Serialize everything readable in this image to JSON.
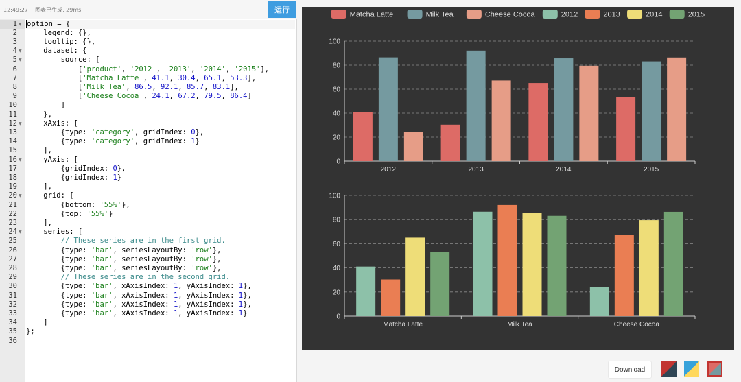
{
  "editor": {
    "status_text": "12:49:27    图表已生成, 29ms",
    "run_label": "运行",
    "active_line": 1,
    "lines": [
      {
        "n": "1",
        "fold": true,
        "tokens": [
          {
            "t": "option = {"
          }
        ]
      },
      {
        "n": "2",
        "fold": false,
        "tokens": [
          {
            "t": "    legend: {},"
          }
        ]
      },
      {
        "n": "3",
        "fold": false,
        "tokens": [
          {
            "t": "    tooltip: {},"
          }
        ]
      },
      {
        "n": "4",
        "fold": true,
        "tokens": [
          {
            "t": "    dataset: {"
          }
        ]
      },
      {
        "n": "5",
        "fold": true,
        "tokens": [
          {
            "t": "        source: ["
          }
        ]
      },
      {
        "n": "6",
        "fold": false,
        "tokens": [
          {
            "t": "            ["
          },
          {
            "t": "'product'",
            "c": "str"
          },
          {
            "t": ", "
          },
          {
            "t": "'2012'",
            "c": "str"
          },
          {
            "t": ", "
          },
          {
            "t": "'2013'",
            "c": "str"
          },
          {
            "t": ", "
          },
          {
            "t": "'2014'",
            "c": "str"
          },
          {
            "t": ", "
          },
          {
            "t": "'2015'",
            "c": "str"
          },
          {
            "t": "],"
          }
        ]
      },
      {
        "n": "7",
        "fold": false,
        "tokens": [
          {
            "t": "            ["
          },
          {
            "t": "'Matcha Latte'",
            "c": "str"
          },
          {
            "t": ", "
          },
          {
            "t": "41.1",
            "c": "num"
          },
          {
            "t": ", "
          },
          {
            "t": "30.4",
            "c": "num"
          },
          {
            "t": ", "
          },
          {
            "t": "65.1",
            "c": "num"
          },
          {
            "t": ", "
          },
          {
            "t": "53.3",
            "c": "num"
          },
          {
            "t": "],"
          }
        ]
      },
      {
        "n": "8",
        "fold": false,
        "tokens": [
          {
            "t": "            ["
          },
          {
            "t": "'Milk Tea'",
            "c": "str"
          },
          {
            "t": ", "
          },
          {
            "t": "86.5",
            "c": "num"
          },
          {
            "t": ", "
          },
          {
            "t": "92.1",
            "c": "num"
          },
          {
            "t": ", "
          },
          {
            "t": "85.7",
            "c": "num"
          },
          {
            "t": ", "
          },
          {
            "t": "83.1",
            "c": "num"
          },
          {
            "t": "],"
          }
        ]
      },
      {
        "n": "9",
        "fold": false,
        "tokens": [
          {
            "t": "            ["
          },
          {
            "t": "'Cheese Cocoa'",
            "c": "str"
          },
          {
            "t": ", "
          },
          {
            "t": "24.1",
            "c": "num"
          },
          {
            "t": ", "
          },
          {
            "t": "67.2",
            "c": "num"
          },
          {
            "t": ", "
          },
          {
            "t": "79.5",
            "c": "num"
          },
          {
            "t": ", "
          },
          {
            "t": "86.4",
            "c": "num"
          },
          {
            "t": "]"
          }
        ]
      },
      {
        "n": "10",
        "fold": false,
        "tokens": [
          {
            "t": "        ]"
          }
        ]
      },
      {
        "n": "11",
        "fold": false,
        "tokens": [
          {
            "t": "    },"
          }
        ]
      },
      {
        "n": "12",
        "fold": true,
        "tokens": [
          {
            "t": "    xAxis: ["
          }
        ]
      },
      {
        "n": "13",
        "fold": false,
        "tokens": [
          {
            "t": "        {type: "
          },
          {
            "t": "'category'",
            "c": "str"
          },
          {
            "t": ", gridIndex: "
          },
          {
            "t": "0",
            "c": "num"
          },
          {
            "t": "},"
          }
        ]
      },
      {
        "n": "14",
        "fold": false,
        "tokens": [
          {
            "t": "        {type: "
          },
          {
            "t": "'category'",
            "c": "str"
          },
          {
            "t": ", gridIndex: "
          },
          {
            "t": "1",
            "c": "num"
          },
          {
            "t": "}"
          }
        ]
      },
      {
        "n": "15",
        "fold": false,
        "tokens": [
          {
            "t": "    ],"
          }
        ]
      },
      {
        "n": "16",
        "fold": true,
        "tokens": [
          {
            "t": "    yAxis: ["
          }
        ]
      },
      {
        "n": "17",
        "fold": false,
        "tokens": [
          {
            "t": "        {gridIndex: "
          },
          {
            "t": "0",
            "c": "num"
          },
          {
            "t": "},"
          }
        ]
      },
      {
        "n": "18",
        "fold": false,
        "tokens": [
          {
            "t": "        {gridIndex: "
          },
          {
            "t": "1",
            "c": "num"
          },
          {
            "t": "}"
          }
        ]
      },
      {
        "n": "19",
        "fold": false,
        "tokens": [
          {
            "t": "    ],"
          }
        ]
      },
      {
        "n": "20",
        "fold": true,
        "tokens": [
          {
            "t": "    grid: ["
          }
        ]
      },
      {
        "n": "21",
        "fold": false,
        "tokens": [
          {
            "t": "        {bottom: "
          },
          {
            "t": "'55%'",
            "c": "str"
          },
          {
            "t": "},"
          }
        ]
      },
      {
        "n": "22",
        "fold": false,
        "tokens": [
          {
            "t": "        {top: "
          },
          {
            "t": "'55%'",
            "c": "str"
          },
          {
            "t": "}"
          }
        ]
      },
      {
        "n": "23",
        "fold": false,
        "tokens": [
          {
            "t": "    ],"
          }
        ]
      },
      {
        "n": "24",
        "fold": true,
        "tokens": [
          {
            "t": "    series: ["
          }
        ]
      },
      {
        "n": "25",
        "fold": false,
        "tokens": [
          {
            "t": "        // These series are in the first grid.",
            "c": "com"
          }
        ]
      },
      {
        "n": "26",
        "fold": false,
        "tokens": [
          {
            "t": "        {type: "
          },
          {
            "t": "'bar'",
            "c": "str"
          },
          {
            "t": ", seriesLayoutBy: "
          },
          {
            "t": "'row'",
            "c": "str"
          },
          {
            "t": "},"
          }
        ]
      },
      {
        "n": "27",
        "fold": false,
        "tokens": [
          {
            "t": "        {type: "
          },
          {
            "t": "'bar'",
            "c": "str"
          },
          {
            "t": ", seriesLayoutBy: "
          },
          {
            "t": "'row'",
            "c": "str"
          },
          {
            "t": "},"
          }
        ]
      },
      {
        "n": "28",
        "fold": false,
        "tokens": [
          {
            "t": "        {type: "
          },
          {
            "t": "'bar'",
            "c": "str"
          },
          {
            "t": ", seriesLayoutBy: "
          },
          {
            "t": "'row'",
            "c": "str"
          },
          {
            "t": "},"
          }
        ]
      },
      {
        "n": "29",
        "fold": false,
        "tokens": [
          {
            "t": "        // These series are in the second grid.",
            "c": "com"
          }
        ]
      },
      {
        "n": "30",
        "fold": false,
        "tokens": [
          {
            "t": "        {type: "
          },
          {
            "t": "'bar'",
            "c": "str"
          },
          {
            "t": ", xAxisIndex: "
          },
          {
            "t": "1",
            "c": "num"
          },
          {
            "t": ", yAxisIndex: "
          },
          {
            "t": "1",
            "c": "num"
          },
          {
            "t": "},"
          }
        ]
      },
      {
        "n": "31",
        "fold": false,
        "tokens": [
          {
            "t": "        {type: "
          },
          {
            "t": "'bar'",
            "c": "str"
          },
          {
            "t": ", xAxisIndex: "
          },
          {
            "t": "1",
            "c": "num"
          },
          {
            "t": ", yAxisIndex: "
          },
          {
            "t": "1",
            "c": "num"
          },
          {
            "t": "},"
          }
        ]
      },
      {
        "n": "32",
        "fold": false,
        "tokens": [
          {
            "t": "        {type: "
          },
          {
            "t": "'bar'",
            "c": "str"
          },
          {
            "t": ", xAxisIndex: "
          },
          {
            "t": "1",
            "c": "num"
          },
          {
            "t": ", yAxisIndex: "
          },
          {
            "t": "1",
            "c": "num"
          },
          {
            "t": "},"
          }
        ]
      },
      {
        "n": "33",
        "fold": false,
        "tokens": [
          {
            "t": "        {type: "
          },
          {
            "t": "'bar'",
            "c": "str"
          },
          {
            "t": ", xAxisIndex: "
          },
          {
            "t": "1",
            "c": "num"
          },
          {
            "t": ", yAxisIndex: "
          },
          {
            "t": "1",
            "c": "num"
          },
          {
            "t": "}"
          }
        ]
      },
      {
        "n": "34",
        "fold": false,
        "tokens": [
          {
            "t": "    ]"
          }
        ]
      },
      {
        "n": "35",
        "fold": false,
        "tokens": [
          {
            "t": "};"
          }
        ]
      },
      {
        "n": "36",
        "fold": false,
        "tokens": []
      }
    ]
  },
  "colors": {
    "panel_bg": "#333333",
    "axis": "#cccccc",
    "grid": "#8c8c8c",
    "text": "#dddddd",
    "run_button": "#3f9de0"
  },
  "legend": {
    "placement": "top-center",
    "items": [
      {
        "name": "Matcha Latte",
        "color": "#dd6b66"
      },
      {
        "name": "Milk Tea",
        "color": "#759aa0"
      },
      {
        "name": "Cheese Cocoa",
        "color": "#e69d87"
      },
      {
        "name": "2012",
        "color": "#8dc1a9"
      },
      {
        "name": "2013",
        "color": "#ea7e53"
      },
      {
        "name": "2014",
        "color": "#eedd78"
      },
      {
        "name": "2015",
        "color": "#73a373"
      }
    ]
  },
  "chart_data": [
    {
      "type": "bar",
      "categories": [
        "2012",
        "2013",
        "2014",
        "2015"
      ],
      "series": [
        {
          "name": "Matcha Latte",
          "values": [
            41.1,
            30.4,
            65.1,
            53.3
          ],
          "color": "#dd6b66"
        },
        {
          "name": "Milk Tea",
          "values": [
            86.5,
            92.1,
            85.7,
            83.1
          ],
          "color": "#759aa0"
        },
        {
          "name": "Cheese Cocoa",
          "values": [
            24.1,
            67.2,
            79.5,
            86.4
          ],
          "color": "#e69d87"
        }
      ],
      "ylim": [
        0,
        100
      ],
      "yticks": [
        "0",
        "20",
        "40",
        "60",
        "80",
        "100"
      ],
      "grid": true
    },
    {
      "type": "bar",
      "categories": [
        "Matcha Latte",
        "Milk Tea",
        "Cheese Cocoa"
      ],
      "series": [
        {
          "name": "2012",
          "values": [
            41.1,
            86.5,
            24.1
          ],
          "color": "#8dc1a9"
        },
        {
          "name": "2013",
          "values": [
            30.4,
            92.1,
            67.2
          ],
          "color": "#ea7e53"
        },
        {
          "name": "2014",
          "values": [
            65.1,
            85.7,
            79.5
          ],
          "color": "#eedd78"
        },
        {
          "name": "2015",
          "values": [
            53.3,
            83.1,
            86.4
          ],
          "color": "#73a373"
        }
      ],
      "ylim": [
        0,
        100
      ],
      "yticks": [
        "0",
        "20",
        "40",
        "60",
        "80",
        "100"
      ],
      "grid": true
    }
  ],
  "toolbar": {
    "download_label": "Download",
    "themes": [
      {
        "name": "dark",
        "colors": [
          "#c23531",
          "#2f4554"
        ],
        "selected": false
      },
      {
        "name": "light",
        "colors": [
          "#37a2da",
          "#ffd85c"
        ],
        "selected": false
      },
      {
        "name": "default-dark",
        "colors": [
          "#dd6b66",
          "#759aa0"
        ],
        "selected": true
      }
    ]
  }
}
